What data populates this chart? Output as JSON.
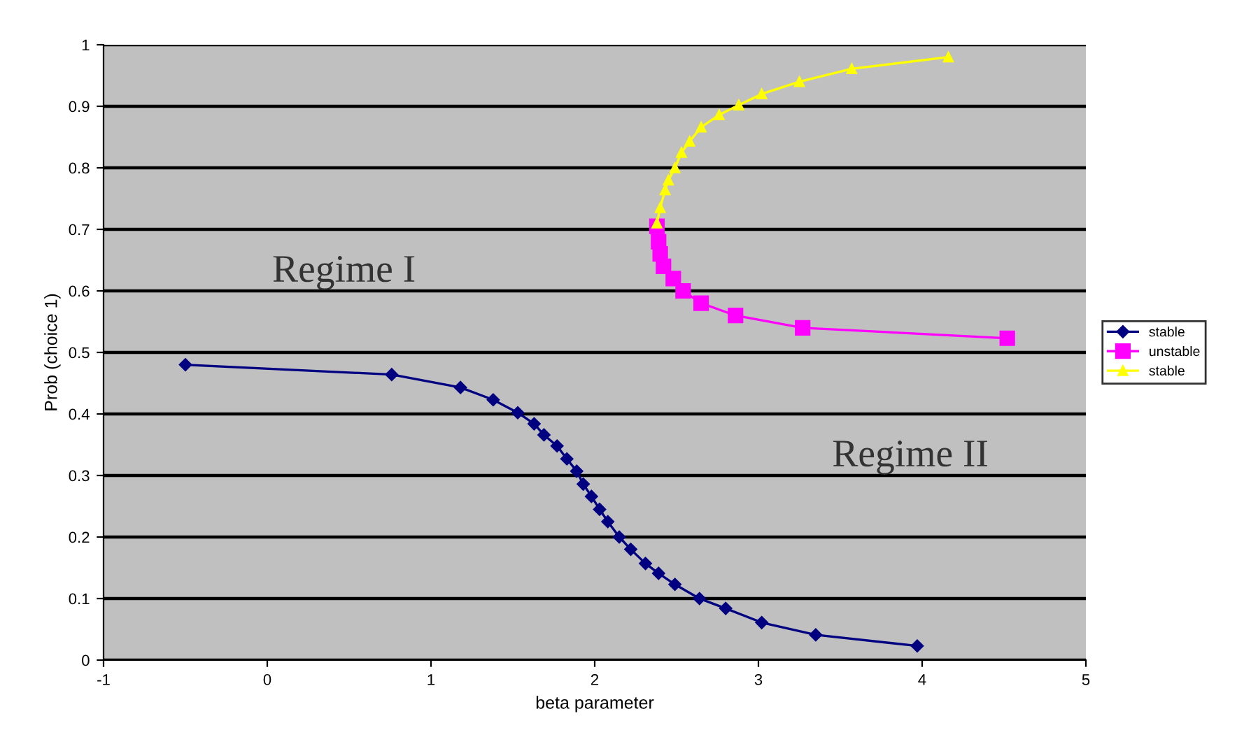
{
  "chart_data": {
    "type": "line",
    "xlabel": "beta parameter",
    "ylabel": "Prob (choice 1)",
    "xlim": [
      -1,
      5
    ],
    "xticks": [
      -1,
      0,
      1,
      2,
      3,
      4,
      5
    ],
    "ylim": [
      0,
      1
    ],
    "yticks": [
      0,
      0.1,
      0.2,
      0.3,
      0.4,
      0.5,
      0.6,
      0.7,
      0.8,
      0.9,
      1
    ],
    "grid": "y",
    "legend": "right",
    "line_style": "solid",
    "annotations": [
      "Regime I",
      "Regime II"
    ],
    "series": [
      {
        "name": "stable",
        "color": "#000080",
        "marker": "diamond",
        "x": [
          -0.5,
          0.76,
          1.18,
          1.38,
          1.53,
          1.63,
          1.69,
          1.77,
          1.83,
          1.89,
          1.93,
          1.98,
          2.03,
          2.08,
          2.15,
          2.22,
          2.31,
          2.39,
          2.49,
          2.64,
          2.8,
          3.02,
          3.35,
          3.97
        ],
        "values": [
          0.48,
          0.464,
          0.443,
          0.423,
          0.402,
          0.384,
          0.366,
          0.348,
          0.327,
          0.307,
          0.286,
          0.266,
          0.245,
          0.225,
          0.2,
          0.18,
          0.157,
          0.141,
          0.123,
          0.1,
          0.084,
          0.061,
          0.041,
          0.023
        ]
      },
      {
        "name": "unstable",
        "color": "#ff00ff",
        "marker": "square",
        "x": [
          2.38,
          2.39,
          2.4,
          2.42,
          2.48,
          2.54,
          2.65,
          2.86,
          3.27,
          4.52
        ],
        "values": [
          0.705,
          0.68,
          0.66,
          0.64,
          0.62,
          0.6,
          0.58,
          0.56,
          0.54,
          0.523
        ]
      },
      {
        "name": "stable",
        "color": "#ffff00",
        "marker": "triangle",
        "x": [
          2.38,
          2.4,
          2.43,
          2.45,
          2.49,
          2.53,
          2.58,
          2.65,
          2.76,
          2.88,
          3.02,
          3.25,
          3.57,
          4.16
        ],
        "values": [
          0.71,
          0.735,
          0.764,
          0.78,
          0.8,
          0.825,
          0.843,
          0.866,
          0.886,
          0.902,
          0.92,
          0.94,
          0.961,
          0.98
        ]
      }
    ]
  }
}
